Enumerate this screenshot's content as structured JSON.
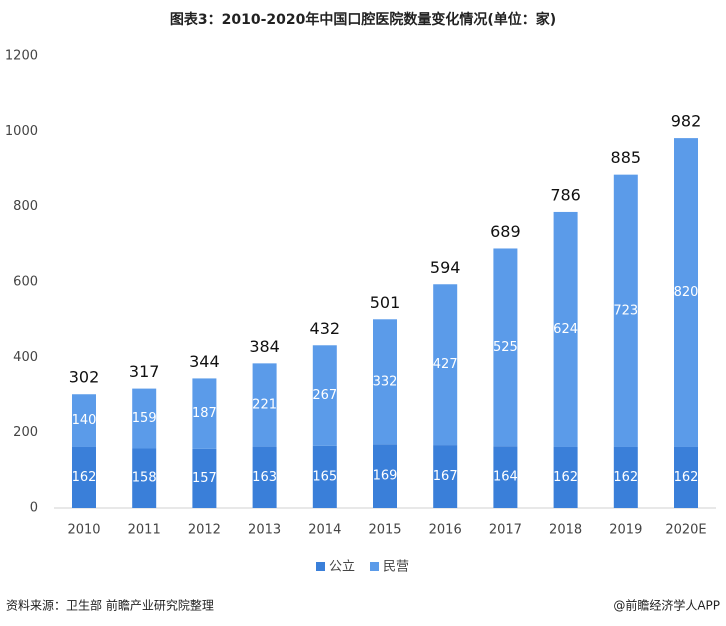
{
  "chart_data": {
    "type": "stacked_bar",
    "title": "图表3：2010-2020年中国口腔医院数量变化情况(单位：家)",
    "categories": [
      "2010",
      "2011",
      "2012",
      "2013",
      "2014",
      "2015",
      "2016",
      "2017",
      "2018",
      "2019",
      "2020E"
    ],
    "series": [
      {
        "name": "公立",
        "color": "#3a7fd9",
        "values": [
          162,
          158,
          157,
          163,
          165,
          169,
          167,
          164,
          162,
          162,
          162
        ]
      },
      {
        "name": "民营",
        "color": "#5b9be9",
        "values": [
          140,
          159,
          187,
          221,
          267,
          332,
          427,
          525,
          624,
          723,
          820
        ]
      }
    ],
    "totals": [
      302,
      317,
      344,
      384,
      432,
      501,
      594,
      689,
      786,
      885,
      982
    ],
    "ylim": [
      0,
      1200
    ],
    "yticks": [
      0,
      200,
      400,
      600,
      800,
      1000,
      1200
    ],
    "grid": false,
    "legend": "bottom",
    "source": "资料来源：卫生部 前瞻产业研究院整理",
    "credit": "@前瞻经济学人APP"
  }
}
